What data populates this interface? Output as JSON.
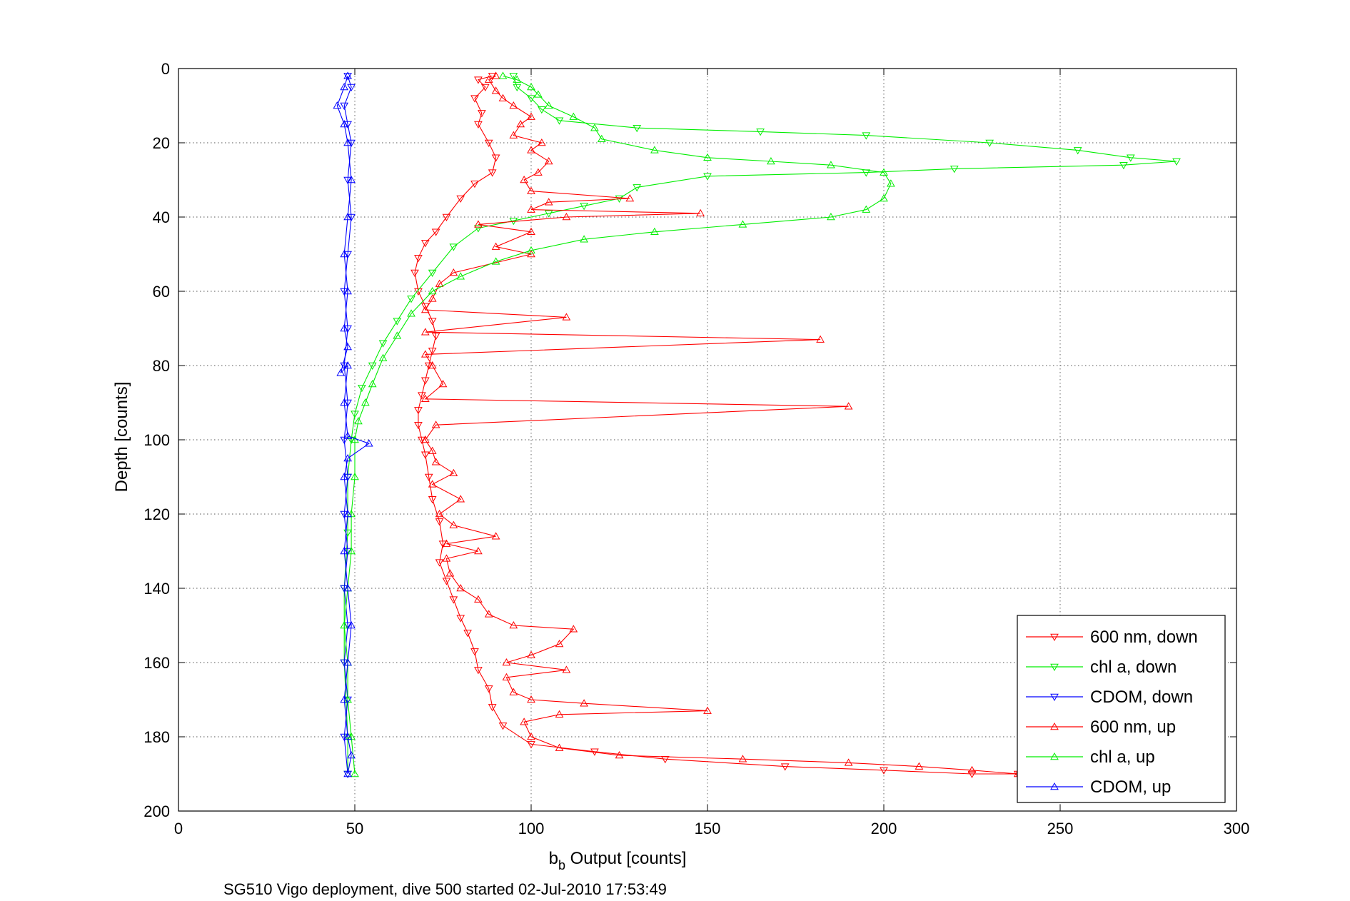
{
  "chart_data": {
    "type": "line",
    "xlabel_main": "b",
    "xlabel_sub": "b",
    "xlabel_rest": " Output [counts]",
    "ylabel": "Depth [counts]",
    "caption": "SG510 Vigo deployment, dive 500 started 02-Jul-2010 17:53:49",
    "xlim": [
      0,
      300
    ],
    "ylim": [
      0,
      200
    ],
    "y_reversed": true,
    "grid": true,
    "x_ticks": [
      "0",
      "50",
      "100",
      "150",
      "200",
      "250",
      "300"
    ],
    "y_ticks": [
      "0",
      "20",
      "40",
      "60",
      "80",
      "100",
      "120",
      "140",
      "160",
      "180",
      "200"
    ],
    "legend_position": "bottom-right",
    "series": [
      {
        "name": "600 nm, down",
        "color": "#ff0000",
        "marker": "triangle-down",
        "points": [
          [
            89,
            2
          ],
          [
            85,
            3
          ],
          [
            87,
            5
          ],
          [
            84,
            8
          ],
          [
            86,
            12
          ],
          [
            85,
            15
          ],
          [
            88,
            20
          ],
          [
            90,
            24
          ],
          [
            89,
            28
          ],
          [
            84,
            31
          ],
          [
            80,
            35
          ],
          [
            76,
            40
          ],
          [
            73,
            44
          ],
          [
            70,
            47
          ],
          [
            68,
            51
          ],
          [
            67,
            55
          ],
          [
            68,
            60
          ],
          [
            70,
            64
          ],
          [
            72,
            68
          ],
          [
            73,
            72
          ],
          [
            72,
            76
          ],
          [
            71,
            80
          ],
          [
            70,
            84
          ],
          [
            69,
            88
          ],
          [
            68,
            92
          ],
          [
            68,
            96
          ],
          [
            69,
            100
          ],
          [
            70,
            104
          ],
          [
            71,
            110
          ],
          [
            72,
            116
          ],
          [
            74,
            122
          ],
          [
            75,
            128
          ],
          [
            74,
            133
          ],
          [
            76,
            138
          ],
          [
            78,
            143
          ],
          [
            80,
            148
          ],
          [
            82,
            152
          ],
          [
            84,
            157
          ],
          [
            85,
            162
          ],
          [
            88,
            167
          ],
          [
            89,
            172
          ],
          [
            92,
            177
          ],
          [
            100,
            182
          ],
          [
            118,
            184
          ],
          [
            138,
            186
          ],
          [
            172,
            188
          ],
          [
            200,
            189
          ],
          [
            225,
            190
          ],
          [
            238,
            190
          ]
        ]
      },
      {
        "name": "chl a, down",
        "color": "#00ee00",
        "marker": "triangle-down",
        "points": [
          [
            95,
            2
          ],
          [
            96,
            5
          ],
          [
            100,
            8
          ],
          [
            103,
            11
          ],
          [
            108,
            14
          ],
          [
            130,
            16
          ],
          [
            165,
            17
          ],
          [
            195,
            18
          ],
          [
            230,
            20
          ],
          [
            255,
            22
          ],
          [
            270,
            24
          ],
          [
            283,
            25
          ],
          [
            268,
            26
          ],
          [
            220,
            27
          ],
          [
            195,
            28
          ],
          [
            150,
            29
          ],
          [
            130,
            32
          ],
          [
            125,
            35
          ],
          [
            115,
            37
          ],
          [
            105,
            39
          ],
          [
            95,
            41
          ],
          [
            85,
            43
          ],
          [
            78,
            48
          ],
          [
            72,
            55
          ],
          [
            66,
            62
          ],
          [
            62,
            68
          ],
          [
            58,
            74
          ],
          [
            55,
            80
          ],
          [
            52,
            86
          ],
          [
            50,
            93
          ],
          [
            49,
            100
          ],
          [
            48,
            110
          ],
          [
            48,
            125
          ],
          [
            47,
            140
          ],
          [
            47,
            160
          ],
          [
            48,
            180
          ],
          [
            48,
            190
          ]
        ]
      },
      {
        "name": "CDOM, down",
        "color": "#0000ff",
        "marker": "triangle-down",
        "points": [
          [
            48,
            2
          ],
          [
            49,
            5
          ],
          [
            47,
            10
          ],
          [
            48,
            15
          ],
          [
            49,
            20
          ],
          [
            48,
            30
          ],
          [
            49,
            40
          ],
          [
            48,
            50
          ],
          [
            47,
            60
          ],
          [
            48,
            70
          ],
          [
            47,
            80
          ],
          [
            48,
            90
          ],
          [
            47,
            100
          ],
          [
            48,
            110
          ],
          [
            47,
            120
          ],
          [
            48,
            130
          ],
          [
            47,
            140
          ],
          [
            48,
            150
          ],
          [
            47,
            160
          ],
          [
            48,
            170
          ],
          [
            47,
            180
          ],
          [
            48,
            190
          ]
        ]
      },
      {
        "name": "600 nm, up",
        "color": "#ff0000",
        "marker": "triangle-up",
        "points": [
          [
            238,
            190
          ],
          [
            225,
            189
          ],
          [
            210,
            188
          ],
          [
            190,
            187
          ],
          [
            160,
            186
          ],
          [
            125,
            185
          ],
          [
            108,
            183
          ],
          [
            100,
            180
          ],
          [
            98,
            176
          ],
          [
            108,
            174
          ],
          [
            150,
            173
          ],
          [
            115,
            171
          ],
          [
            100,
            170
          ],
          [
            95,
            168
          ],
          [
            93,
            164
          ],
          [
            110,
            162
          ],
          [
            93,
            160
          ],
          [
            100,
            158
          ],
          [
            108,
            155
          ],
          [
            112,
            151
          ],
          [
            95,
            150
          ],
          [
            88,
            147
          ],
          [
            85,
            143
          ],
          [
            80,
            140
          ],
          [
            77,
            136
          ],
          [
            76,
            132
          ],
          [
            85,
            130
          ],
          [
            76,
            128
          ],
          [
            90,
            126
          ],
          [
            78,
            123
          ],
          [
            74,
            120
          ],
          [
            80,
            116
          ],
          [
            72,
            112
          ],
          [
            78,
            109
          ],
          [
            73,
            106
          ],
          [
            72,
            103
          ],
          [
            70,
            100
          ],
          [
            73,
            96
          ],
          [
            190,
            91
          ],
          [
            70,
            89
          ],
          [
            75,
            85
          ],
          [
            72,
            80
          ],
          [
            70,
            77
          ],
          [
            182,
            73
          ],
          [
            70,
            71
          ],
          [
            110,
            67
          ],
          [
            70,
            65
          ],
          [
            72,
            62
          ],
          [
            74,
            58
          ],
          [
            78,
            55
          ],
          [
            100,
            50
          ],
          [
            90,
            48
          ],
          [
            100,
            44
          ],
          [
            85,
            42
          ],
          [
            110,
            40
          ],
          [
            148,
            39
          ],
          [
            100,
            38
          ],
          [
            105,
            36
          ],
          [
            128,
            35
          ],
          [
            100,
            33
          ],
          [
            98,
            30
          ],
          [
            102,
            28
          ],
          [
            105,
            25
          ],
          [
            100,
            22
          ],
          [
            103,
            20
          ],
          [
            95,
            18
          ],
          [
            97,
            15
          ],
          [
            100,
            13
          ],
          [
            95,
            10
          ],
          [
            92,
            8
          ],
          [
            90,
            6
          ],
          [
            88,
            3
          ],
          [
            90,
            2
          ]
        ]
      },
      {
        "name": "chl a, up",
        "color": "#00ee00",
        "marker": "triangle-up",
        "points": [
          [
            50,
            190
          ],
          [
            49,
            180
          ],
          [
            48,
            170
          ],
          [
            48,
            160
          ],
          [
            47,
            150
          ],
          [
            48,
            140
          ],
          [
            49,
            130
          ],
          [
            49,
            120
          ],
          [
            50,
            110
          ],
          [
            50,
            100
          ],
          [
            51,
            95
          ],
          [
            53,
            90
          ],
          [
            55,
            85
          ],
          [
            58,
            78
          ],
          [
            62,
            72
          ],
          [
            66,
            66
          ],
          [
            72,
            60
          ],
          [
            80,
            56
          ],
          [
            90,
            52
          ],
          [
            100,
            49
          ],
          [
            115,
            46
          ],
          [
            135,
            44
          ],
          [
            160,
            42
          ],
          [
            185,
            40
          ],
          [
            195,
            38
          ],
          [
            200,
            35
          ],
          [
            202,
            31
          ],
          [
            200,
            28
          ],
          [
            185,
            26
          ],
          [
            168,
            25
          ],
          [
            150,
            24
          ],
          [
            135,
            22
          ],
          [
            120,
            19
          ],
          [
            118,
            16
          ],
          [
            112,
            13
          ],
          [
            105,
            10
          ],
          [
            102,
            7
          ],
          [
            100,
            5
          ],
          [
            96,
            3
          ],
          [
            92,
            2
          ]
        ]
      },
      {
        "name": "CDOM, up",
        "color": "#0000ff",
        "marker": "triangle-up",
        "points": [
          [
            48,
            190
          ],
          [
            49,
            185
          ],
          [
            48,
            180
          ],
          [
            47,
            170
          ],
          [
            48,
            160
          ],
          [
            49,
            150
          ],
          [
            48,
            140
          ],
          [
            47,
            130
          ],
          [
            48,
            120
          ],
          [
            47,
            110
          ],
          [
            48,
            105
          ],
          [
            54,
            101
          ],
          [
            48,
            99
          ],
          [
            47,
            90
          ],
          [
            48,
            80
          ],
          [
            46,
            82
          ],
          [
            48,
            75
          ],
          [
            47,
            70
          ],
          [
            48,
            60
          ],
          [
            47,
            50
          ],
          [
            48,
            40
          ],
          [
            49,
            30
          ],
          [
            48,
            20
          ],
          [
            47,
            15
          ],
          [
            45,
            10
          ],
          [
            47,
            5
          ],
          [
            48,
            2
          ]
        ]
      }
    ]
  }
}
